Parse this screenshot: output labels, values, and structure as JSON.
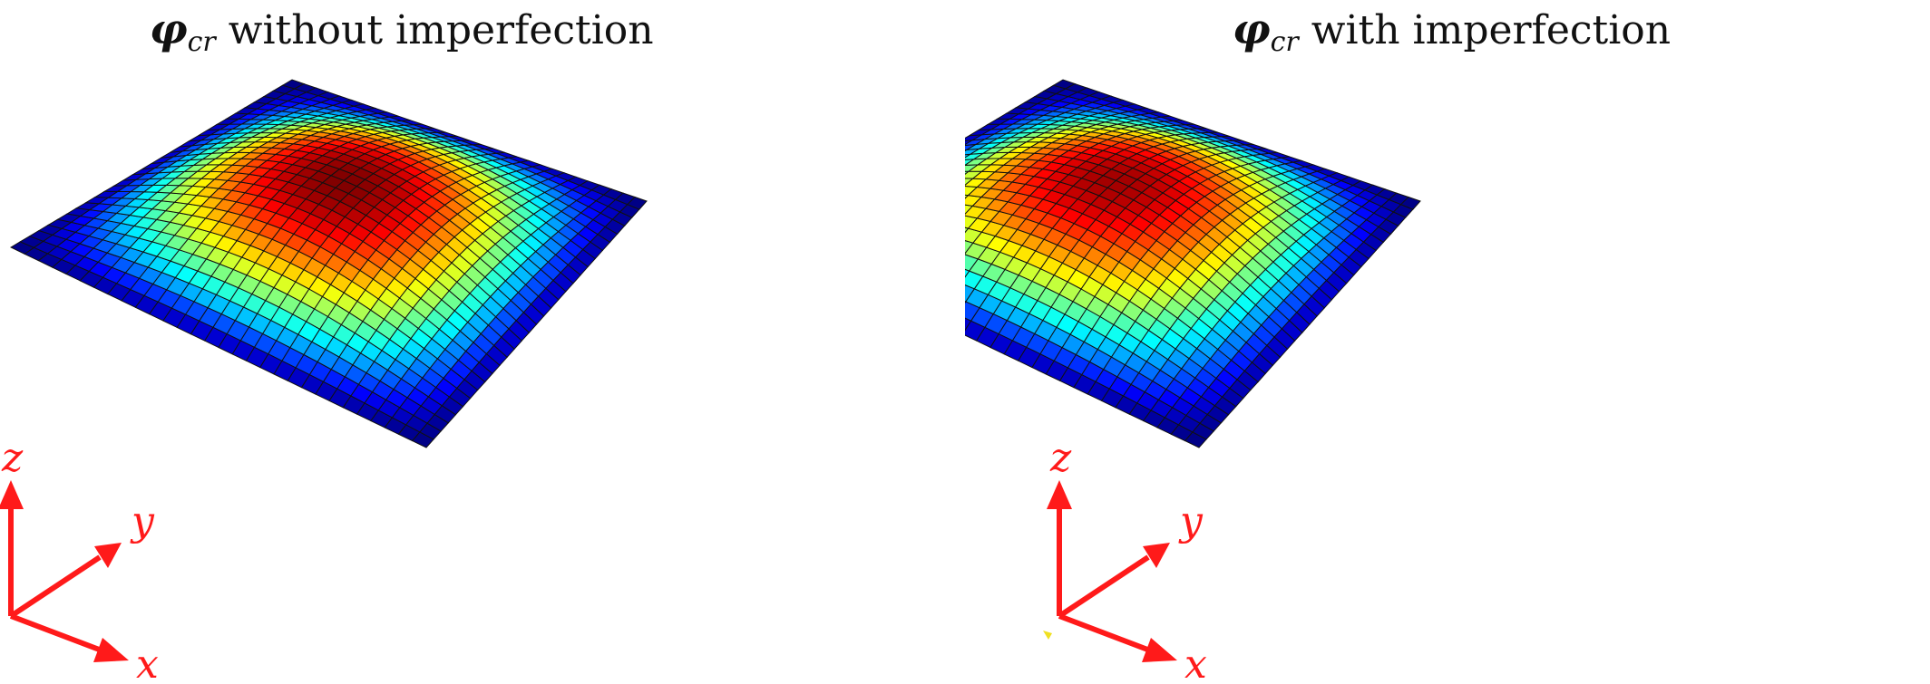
{
  "panels": [
    {
      "title": {
        "symbol": "φ",
        "subscript": "cr",
        "text": "without imperfection"
      },
      "axes": {
        "z": "z",
        "y": "y",
        "x": "x"
      },
      "imperfection": false
    },
    {
      "title": {
        "symbol": "φ",
        "subscript": "cr",
        "text": "with imperfection"
      },
      "axes": {
        "z": "z",
        "y": "y",
        "x": "x"
      },
      "imperfection": true
    }
  ],
  "colors": {
    "axis": "#ff1a1a",
    "mesh_line": "#111111",
    "colormap": "jet"
  }
}
